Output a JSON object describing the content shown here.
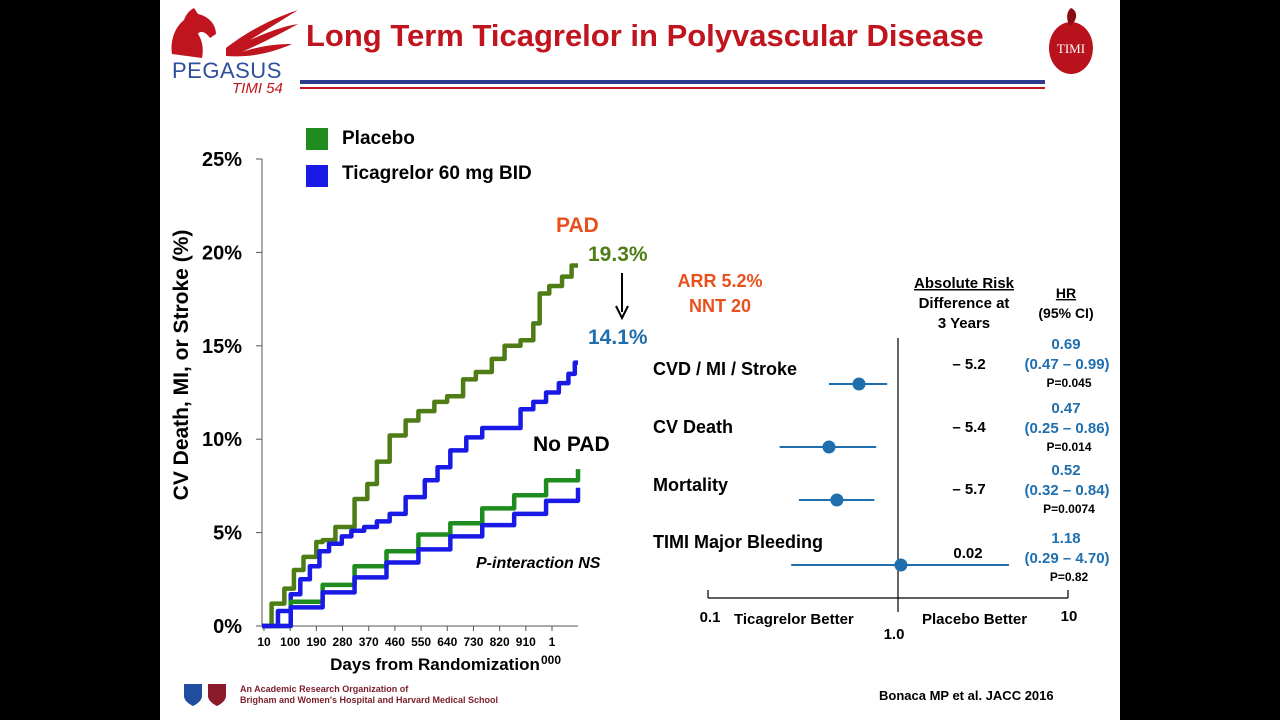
{
  "slide": {
    "title": "Long Term Ticagrelor in Polyvascular Disease",
    "logo_left": {
      "word": "PEGASUS",
      "sub": "TIMI 54"
    },
    "logo_right": {
      "text": "TIMI"
    },
    "footer_org_line1": "An Academic Research Organization of",
    "footer_org_line2": "Brigham and Women's Hospital and Harvard Medical School",
    "citation": "Bonaca MP et al. JACC 2016"
  },
  "legend": {
    "placebo": {
      "label": "Placebo",
      "color": "#1e8c1e"
    },
    "ticagrelor": {
      "label": "Ticagrelor 60 mg BID",
      "color": "#1a1ae6"
    }
  },
  "chart_data": [
    {
      "type": "line",
      "ylabel": "CV Death, MI, or Stroke (%)",
      "xlabel": "Days from Randomization",
      "ylim": [
        0,
        25
      ],
      "yticks": [
        "0%",
        "5%",
        "10%",
        "15%",
        "20%",
        "25%"
      ],
      "xticks": [
        "10",
        "100",
        "190",
        "280",
        "370",
        "460",
        "550",
        "640",
        "730",
        "820",
        "910",
        "1 000"
      ],
      "xlim": [
        10,
        1000
      ],
      "series": [
        {
          "group": "PAD",
          "arm": "Placebo",
          "color": "#4e7d16",
          "x": [
            10,
            40,
            80,
            110,
            140,
            180,
            200,
            240,
            270,
            300,
            340,
            370,
            410,
            460,
            500,
            550,
            590,
            640,
            680,
            730,
            770,
            820,
            860,
            880,
            910,
            950,
            980,
            1000
          ],
          "y": [
            0,
            1.2,
            2.0,
            3.0,
            3.7,
            4.5,
            4.6,
            5.3,
            5.3,
            6.8,
            7.6,
            8.8,
            10.2,
            11.0,
            11.5,
            12.0,
            12.3,
            13.2,
            13.6,
            14.3,
            15.0,
            15.3,
            16.2,
            17.8,
            18.2,
            18.7,
            19.3,
            19.3
          ]
        },
        {
          "group": "PAD",
          "arm": "Ticagrelor 60 mg BID",
          "color": "#1a1ae6",
          "x": [
            10,
            60,
            100,
            130,
            160,
            190,
            220,
            260,
            290,
            330,
            370,
            410,
            460,
            520,
            560,
            600,
            650,
            700,
            740,
            780,
            820,
            860,
            900,
            940,
            970,
            990,
            1000
          ],
          "y": [
            0,
            0.8,
            1.7,
            2.5,
            3.2,
            4.0,
            4.4,
            4.8,
            5.1,
            5.3,
            5.6,
            6.0,
            6.9,
            7.8,
            8.5,
            9.4,
            10.1,
            10.6,
            10.6,
            10.6,
            11.6,
            12.0,
            12.5,
            13.0,
            13.5,
            14.1,
            14.1
          ]
        },
        {
          "group": "No PAD",
          "arm": "Placebo",
          "color": "#1e8c1e",
          "x": [
            10,
            100,
            200,
            300,
            400,
            500,
            600,
            700,
            800,
            900,
            1000
          ],
          "y": [
            0,
            1.3,
            2.2,
            3.2,
            4.0,
            4.9,
            5.5,
            6.3,
            7.0,
            7.8,
            8.4
          ]
        },
        {
          "group": "No PAD",
          "arm": "Ticagrelor 60 mg BID",
          "color": "#1a1ae6",
          "x": [
            10,
            100,
            200,
            300,
            400,
            500,
            600,
            700,
            800,
            900,
            1000
          ],
          "y": [
            0,
            1.0,
            1.8,
            2.6,
            3.4,
            4.1,
            4.8,
            5.4,
            6.0,
            6.7,
            7.4
          ]
        }
      ],
      "annotations": {
        "pad_label": "PAD",
        "pad_placebo_end": "19.3%",
        "pad_ticagrelor_end": "14.1%",
        "arr_line1": "ARR 5.2%",
        "arr_line2": "NNT 20",
        "no_pad_label": "No PAD",
        "p_interaction": "P-interaction NS"
      }
    },
    {
      "type": "scatter",
      "subtype": "forest",
      "x_scale": "log",
      "xlim": [
        0.1,
        10
      ],
      "xtick_left": "0.1",
      "xtick_center": "1.0",
      "xtick_right": "10",
      "left_label": "Ticagrelor Better",
      "right_label": "Placebo Better",
      "col_header_ard": [
        "Absolute Risk",
        "Difference at",
        "3 Years"
      ],
      "col_header_hr": [
        "HR",
        "(95%  CI)"
      ],
      "rows": [
        {
          "label": "CVD / MI / Stroke",
          "ard": "– 5.2",
          "hr": 0.69,
          "lo": 0.47,
          "hi": 0.99,
          "hr_text": "0.69",
          "ci_text": "(0.47 – 0.99)",
          "p_text": "P=0.045"
        },
        {
          "label": "CV Death",
          "ard": "– 5.4",
          "hr": 0.47,
          "lo": 0.25,
          "hi": 0.86,
          "hr_text": "0.47",
          "ci_text": "(0.25 – 0.86)",
          "p_text": "P=0.014"
        },
        {
          "label": "Mortality",
          "ard": "– 5.7",
          "hr": 0.52,
          "lo": 0.32,
          "hi": 0.84,
          "hr_text": "0.52",
          "ci_text": "(0.32 – 0.84)",
          "p_text": "P=0.0074"
        },
        {
          "label": "TIMI Major Bleeding",
          "ard": "0.02",
          "hr": 1.18,
          "lo": 0.29,
          "hi": 4.7,
          "hr_text": "1.18",
          "ci_text": "(0.29 – 4.70)",
          "p_text": "P=0.82"
        }
      ],
      "colors": {
        "point": "#1f6fae",
        "hr_text": "#1f6fae",
        "p_text": "#000000"
      }
    }
  ]
}
